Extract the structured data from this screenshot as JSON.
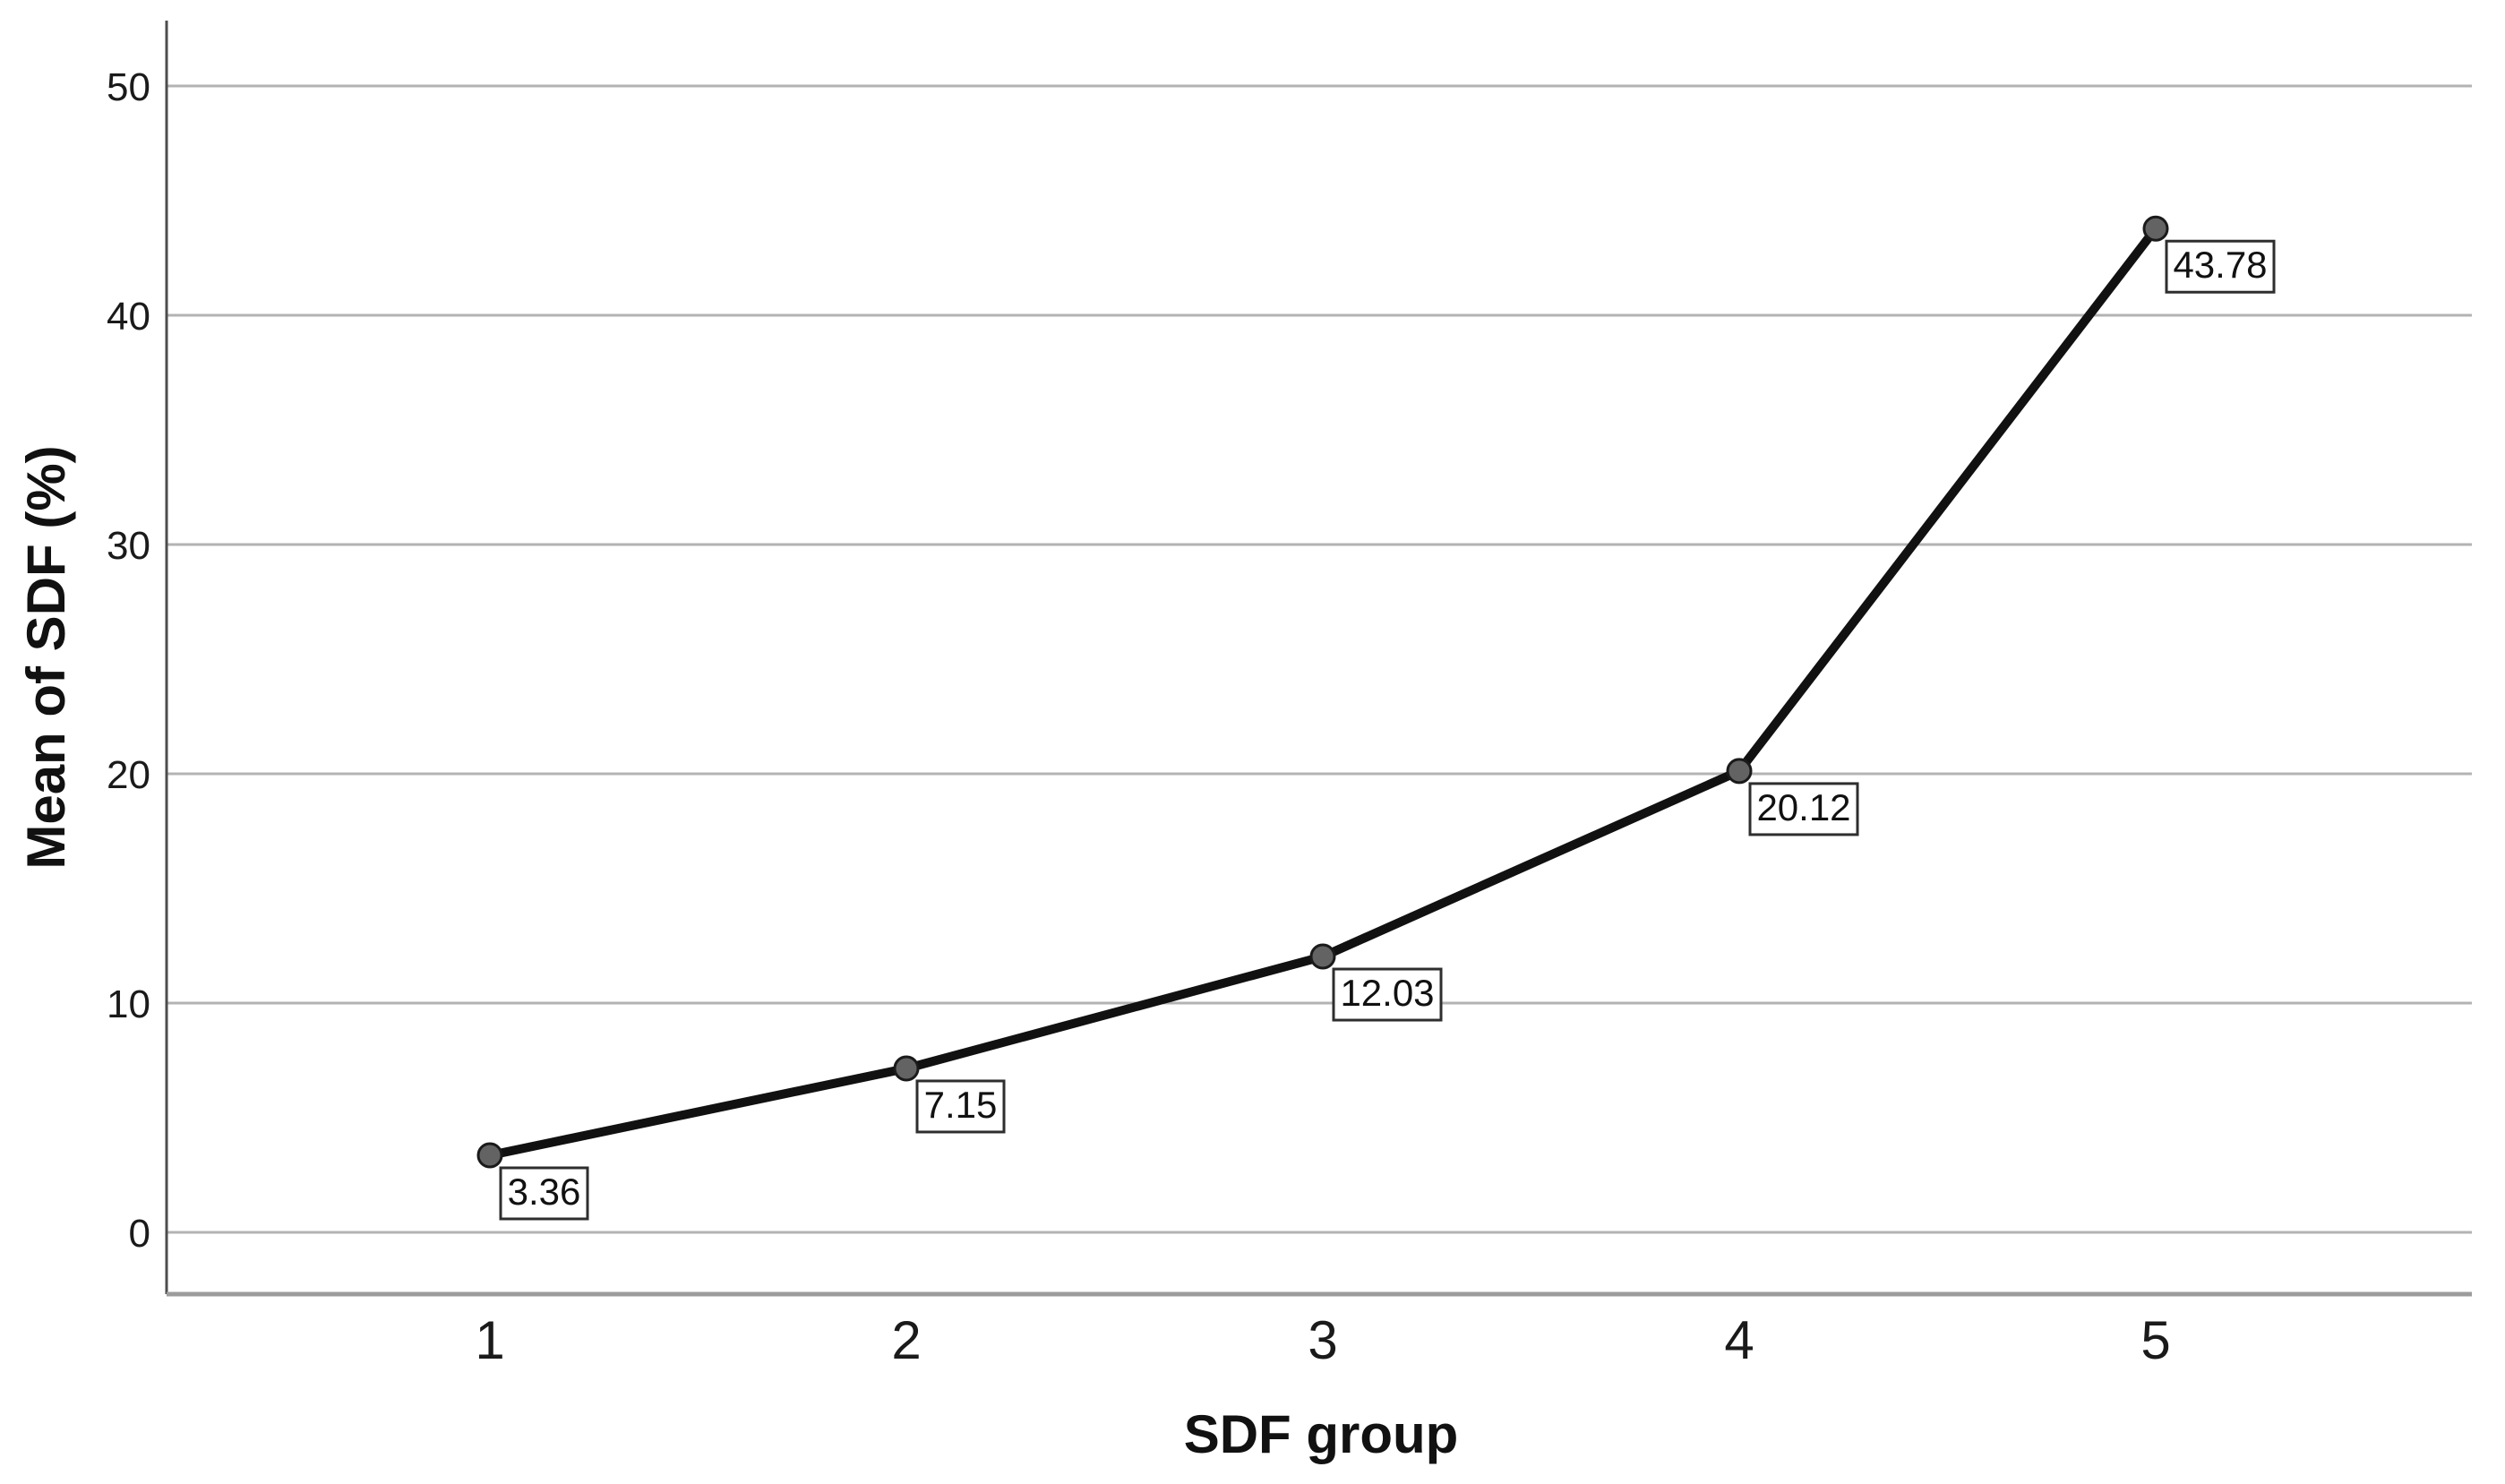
{
  "chart_data": {
    "type": "line",
    "title": "",
    "xlabel": "SDF group",
    "ylabel": "Mean of SDF (%)",
    "categories": [
      "1",
      "2",
      "3",
      "4",
      "5"
    ],
    "series": [
      {
        "name": "Mean of SDF",
        "values": [
          3.36,
          7.15,
          12.03,
          20.12,
          43.78
        ],
        "point_labels": [
          "3.36",
          "7.15",
          "12.03",
          "20.12",
          "43.78"
        ]
      }
    ],
    "yticks": [
      0,
      10,
      20,
      30,
      40,
      50
    ],
    "ylim": [
      -2.7,
      52.9
    ],
    "grid": "horizontal-only",
    "legend_position": "none",
    "colors": {
      "background": "#ffffff",
      "series_line": "#111111",
      "marker_fill": "#636363",
      "marker_stroke": "#1a1a1a",
      "gridline": "#b3b3b3",
      "y_axis_line": "#4d4d4d",
      "x_axis_line": "#9c9c9c",
      "tick_text": "#1a1a1a",
      "label_box_bg": "#ffffff",
      "label_box_border": "#2e2e2e"
    }
  }
}
